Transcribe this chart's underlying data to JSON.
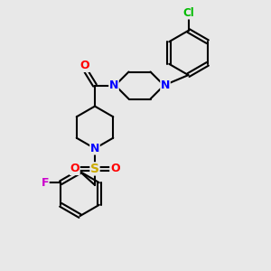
{
  "background_color": "#e8e8e8",
  "bond_color": "#000000",
  "atom_colors": {
    "N": "#0000ff",
    "O": "#ff0000",
    "S": "#ccaa00",
    "F": "#cc00cc",
    "Cl": "#00bb00",
    "C": "#000000"
  },
  "figsize": [
    3.0,
    3.0
  ],
  "dpi": 100
}
